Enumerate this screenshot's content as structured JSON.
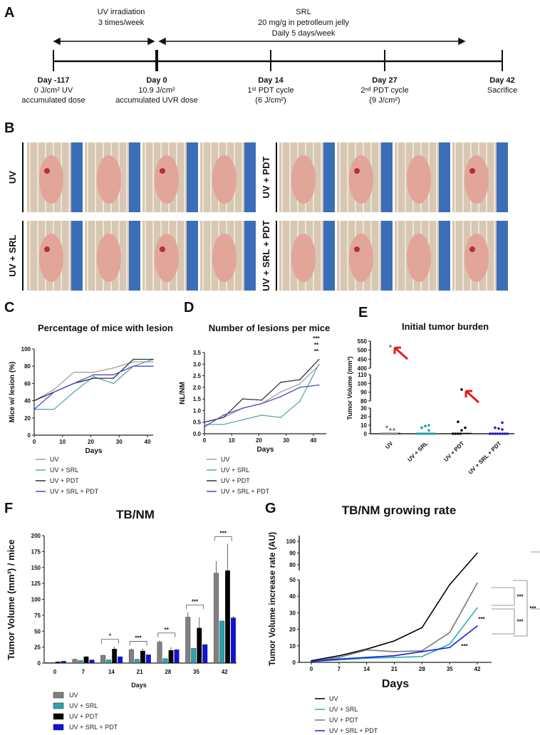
{
  "panel_labels": {
    "a": "A",
    "b": "B",
    "c": "C",
    "d": "D",
    "e": "E",
    "f": "F",
    "g": "G"
  },
  "timeline": {
    "top_left": [
      "UV irradiation",
      "3 times/week"
    ],
    "top_right": [
      "SRL",
      "20 mg/g in petrolleum jelly",
      "Daily 5 days/week"
    ],
    "points": [
      {
        "day": "Day -117",
        "line1": "0 J/cm² UV",
        "line2": "accumulated dose"
      },
      {
        "day": "Day 0",
        "line1": "10.9 J/cm²",
        "line2": "accumulated UVR dose"
      },
      {
        "day": "Day 14",
        "line1": "1ˢᵗ PDT cycle",
        "line2": "(6 J/cm²)"
      },
      {
        "day": "Day 27",
        "line1": "2ⁿᵈ PDT cycle",
        "line2": "(9 J/cm²)"
      },
      {
        "day": "Day 42",
        "line1": "Sacrifice",
        "line2": ""
      }
    ]
  },
  "photos": {
    "groups": [
      {
        "label": "UV"
      },
      {
        "label": "UV + PDT"
      },
      {
        "label": "UV + SRL"
      },
      {
        "label": "UV + SRL + PDT"
      }
    ]
  },
  "chart_data": [
    {
      "type": "line",
      "title": "Percentage of mice with lesion",
      "xlabel": "Days",
      "ylabel": "Mice w/ lesion (%)",
      "ylim": [
        0,
        100
      ],
      "xlim": [
        0,
        40
      ],
      "xticks": [
        0,
        10,
        20,
        30,
        40
      ],
      "yticks": [
        0,
        20,
        40,
        60,
        80,
        100
      ],
      "legend": "bottom",
      "x": [
        0,
        7,
        14,
        21,
        28,
        35,
        42
      ],
      "series": [
        {
          "name": "UV",
          "color": "#a0a0a0",
          "values": [
            40,
            53,
            73,
            73,
            78,
            85,
            85
          ]
        },
        {
          "name": "UV + SRL",
          "color": "#5aa8b0",
          "values": [
            30,
            30,
            50,
            68,
            60,
            80,
            88
          ]
        },
        {
          "name": "UV + PDT",
          "color": "#333333",
          "values": [
            40,
            50,
            60,
            66,
            66,
            88,
            88
          ]
        },
        {
          "name": "UV + SRL + PDT",
          "color": "#4b4bd0",
          "values": [
            30,
            50,
            60,
            70,
            70,
            80,
            80
          ]
        }
      ]
    },
    {
      "type": "line",
      "title": "Number of lesions per mice",
      "xlabel": "Days",
      "ylabel": "NL/NM",
      "ylim": [
        0,
        3.5
      ],
      "xlim": [
        0,
        40
      ],
      "xticks": [
        0,
        10,
        20,
        30,
        40
      ],
      "yticks": [
        "0.0",
        "0.5",
        "1.0",
        "1.5",
        "2.0",
        "2.5",
        "3.0",
        "3.5"
      ],
      "legend": "bottom",
      "x": [
        0,
        7,
        14,
        21,
        28,
        35,
        42
      ],
      "annotations": [
        {
          "text": "***",
          "color": "#9a9a9a"
        },
        {
          "text": "**",
          "color": "#5aa8d0"
        },
        {
          "text": "**",
          "color": "#111111"
        }
      ],
      "series": [
        {
          "name": "UV",
          "color": "#a0a0a0",
          "values": [
            0.5,
            0.7,
            1.1,
            1.3,
            1.8,
            2.15,
            2.95
          ]
        },
        {
          "name": "UV + SRL",
          "color": "#5aa8b0",
          "values": [
            0.4,
            0.4,
            0.6,
            0.8,
            0.7,
            1.4,
            3.0
          ]
        },
        {
          "name": "UV + PDT",
          "color": "#333333",
          "values": [
            0.5,
            0.7,
            1.5,
            1.45,
            2.22,
            2.33,
            3.2
          ]
        },
        {
          "name": "UV + SRL + PDT",
          "color": "#4b4bd0",
          "values": [
            0.3,
            0.8,
            1.1,
            1.3,
            1.6,
            2.0,
            2.1
          ]
        }
      ]
    },
    {
      "type": "scatter",
      "title": "Initial tumor burden",
      "ylabel": "Tumor Volume (mm³)",
      "yticks": [
        0,
        10,
        20,
        30,
        80,
        90,
        100,
        110,
        400,
        450,
        500,
        550
      ],
      "y_axis_breaks": [
        [
          30,
          80
        ],
        [
          110,
          400
        ]
      ],
      "categories": [
        "UV",
        "UV + SRL",
        "UV + PDT",
        "UV + SRL + PDT"
      ],
      "series": [
        {
          "name": "UV",
          "color": "#888888",
          "values": [
            0,
            0,
            0,
            0,
            0,
            0,
            0,
            5,
            5,
            8,
            522
          ]
        },
        {
          "name": "UV + SRL",
          "color": "#2a9db0",
          "values": [
            0,
            0,
            0,
            0,
            0,
            0,
            0,
            0,
            4,
            7,
            9,
            10,
            7
          ]
        },
        {
          "name": "UV + PDT",
          "color": "#111111",
          "values": [
            0,
            0,
            0,
            0,
            4,
            7,
            14,
            93
          ]
        },
        {
          "name": "UV + SRL + PDT",
          "color": "#2020c0",
          "values": [
            0,
            0,
            0,
            0,
            0,
            0,
            0,
            0,
            5,
            7,
            6,
            13
          ]
        }
      ],
      "highlighted_outliers": [
        522,
        93
      ],
      "arrow_color": "#e02020"
    },
    {
      "type": "bar",
      "title": "TB/NM",
      "xlabel": "Days",
      "ylabel": "Tumor Volume (mm³) / mice",
      "ylim": [
        0,
        200
      ],
      "yticks": [
        0,
        25,
        50,
        75,
        100,
        125,
        150,
        175,
        200
      ],
      "legend": "bottom",
      "categories": [
        "0",
        "7",
        "14",
        "21",
        "28",
        "35",
        "42"
      ],
      "significance": [
        "",
        "",
        "*",
        "***",
        "**",
        "***",
        "***"
      ],
      "series": [
        {
          "name": "UV",
          "color": "#808080",
          "values": [
            1,
            6,
            12,
            21,
            33,
            72,
            141
          ],
          "errors": [
            0,
            1,
            1,
            2,
            3,
            8,
            19
          ]
        },
        {
          "name": "UV + SRL",
          "color": "#2aa3b0",
          "values": [
            1,
            4,
            5,
            6,
            7,
            23,
            66
          ],
          "errors": [
            0,
            0,
            0,
            0,
            0,
            0,
            0
          ]
        },
        {
          "name": "UV + PDT",
          "color": "#000000",
          "values": [
            2,
            10,
            22,
            19,
            20,
            55,
            145
          ],
          "errors": [
            0,
            1,
            4,
            4,
            5,
            17,
            42
          ]
        },
        {
          "name": "UV + SRL + PDT",
          "color": "#1010e0",
          "values": [
            3,
            5,
            10,
            13,
            21,
            29,
            71
          ],
          "errors": [
            0,
            0,
            0,
            0,
            0,
            0,
            3
          ]
        }
      ]
    },
    {
      "type": "line",
      "title": "TB/NM growing rate",
      "xlabel": "Days",
      "ylabel": "Tumor Volume increase rate (AU)",
      "xticks": [
        0,
        7,
        14,
        21,
        28,
        35,
        42
      ],
      "yticks": [
        0,
        10,
        20,
        30,
        40,
        50,
        80,
        90,
        100
      ],
      "y_axis_breaks": [
        [
          50,
          75
        ]
      ],
      "legend": "bottom",
      "x": [
        0,
        7,
        14,
        21,
        28,
        35,
        42
      ],
      "significance": [
        "***",
        "***",
        "***",
        "***",
        "***",
        "***"
      ],
      "series": [
        {
          "name": "UV",
          "color": "#000000",
          "values": [
            1,
            4,
            8,
            13,
            21,
            47,
            90
          ]
        },
        {
          "name": "UV + SRL",
          "color": "#20b0b0",
          "values": [
            0.5,
            1.5,
            2.5,
            3,
            3.5,
            11,
            33
          ]
        },
        {
          "name": "UV + PDT",
          "color": "#777777",
          "values": [
            0.5,
            3,
            7.5,
            6.5,
            7,
            18,
            48
          ]
        },
        {
          "name": "UV + SRL + PDT",
          "color": "#1a1ae0",
          "values": [
            0.5,
            2,
            3,
            4,
            6.5,
            9,
            22
          ]
        }
      ]
    }
  ]
}
